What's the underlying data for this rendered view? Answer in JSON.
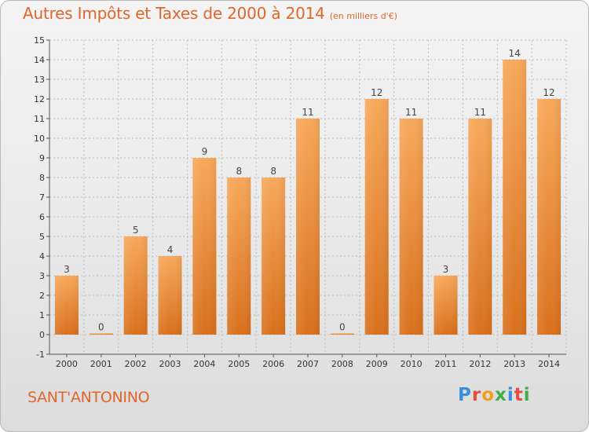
{
  "title": "Autres Impôts et Taxes de 2000 à 2014",
  "title_unit": "(en milliers d'€)",
  "commune": "SANT'ANTONINO",
  "logo": {
    "text": "Proxiti",
    "letters": [
      {
        "ch": "P",
        "color": "#3a8fd6"
      },
      {
        "ch": "r",
        "color": "#e64e3c"
      },
      {
        "ch": "o",
        "color": "#f0a020"
      },
      {
        "ch": "x",
        "color": "#3fae49"
      },
      {
        "ch": "i",
        "color": "#3a8fd6"
      },
      {
        "ch": "t",
        "color": "#e64e3c"
      },
      {
        "ch": "i",
        "color": "#3fae49"
      }
    ]
  },
  "colors": {
    "accent": "#e0662b",
    "bar_top": "#f7a85a",
    "bar_bottom": "#d9701c",
    "grid": "#bdbdbd"
  },
  "chart_data": {
    "type": "bar",
    "categories": [
      "2000",
      "2001",
      "2002",
      "2003",
      "2004",
      "2005",
      "2006",
      "2007",
      "2008",
      "2009",
      "2010",
      "2011",
      "2012",
      "2013",
      "2014"
    ],
    "values": [
      3,
      0,
      5,
      4,
      9,
      8,
      8,
      11,
      0,
      12,
      11,
      3,
      11,
      14,
      12
    ],
    "data_labels": [
      "3",
      "0",
      "5",
      "4",
      "9",
      "8",
      "8",
      "11",
      "0",
      "12",
      "11",
      "3",
      "11",
      "14",
      "12"
    ],
    "ylim": [
      -1,
      15
    ],
    "yticks": [
      "-1",
      "0",
      "1",
      "2",
      "3",
      "4",
      "5",
      "6",
      "7",
      "8",
      "9",
      "10",
      "11",
      "12",
      "13",
      "14",
      "15"
    ],
    "grid": true,
    "xlabel": "",
    "ylabel": ""
  }
}
